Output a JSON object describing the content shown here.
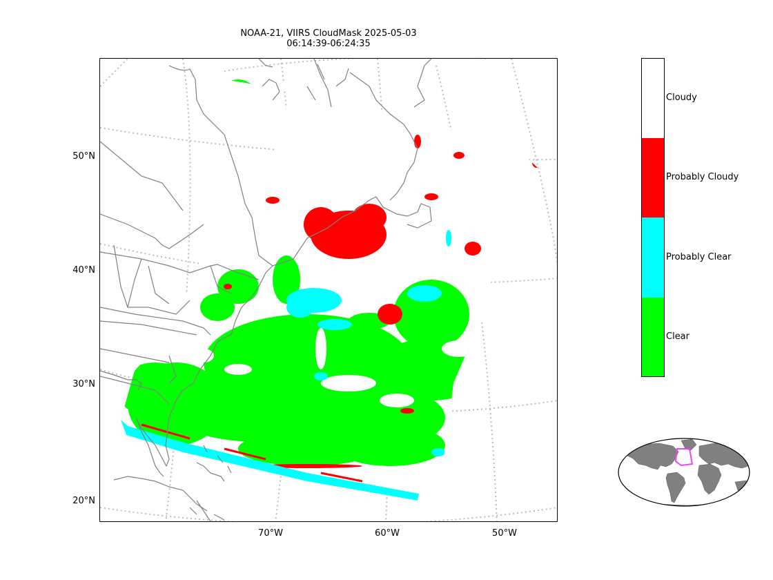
{
  "title": {
    "line1": "NOAA-21, VIIRS CloudMask 2025-05-03",
    "line2": "06:14:39-06:24:35"
  },
  "axes": {
    "lat_labels": [
      "50°N",
      "40°N",
      "30°N",
      "20°N"
    ],
    "lon_labels": [
      "70°W",
      "60°W",
      "50°W"
    ]
  },
  "legend": {
    "categories": [
      {
        "label": "Cloudy",
        "color": "#ffffff"
      },
      {
        "label": "Probably Cloudy",
        "color": "#ff0000"
      },
      {
        "label": "Probably Clear",
        "color": "#00ffff"
      },
      {
        "label": "Clear",
        "color": "#00ff00"
      }
    ]
  },
  "colors": {
    "coastline": "#808080",
    "graticule": "#bbbbbb",
    "land_inset": "#808080",
    "inset_box": "#ee44ee"
  },
  "inset": {
    "icon": "globe-inset-map"
  }
}
